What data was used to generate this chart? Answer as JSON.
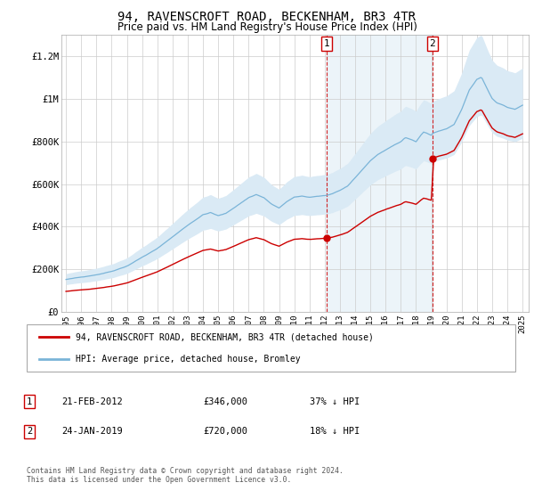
{
  "title": "94, RAVENSCROFT ROAD, BECKENHAM, BR3 4TR",
  "subtitle": "Price paid vs. HM Land Registry's House Price Index (HPI)",
  "title_fontsize": 10,
  "subtitle_fontsize": 8.5,
  "background_color": "#ffffff",
  "grid_color": "#cccccc",
  "hpi_color": "#7ab4d8",
  "hpi_fill_color": "#daeaf5",
  "price_color": "#cc0000",
  "ylim": [
    0,
    1300000
  ],
  "yticks": [
    0,
    200000,
    400000,
    600000,
    800000,
    1000000,
    1200000
  ],
  "ytick_labels": [
    "£0",
    "£200K",
    "£400K",
    "£600K",
    "£800K",
    "£1M",
    "£1.2M"
  ],
  "sale1_year": 2012.12,
  "sale1_price": 346000,
  "sale2_year": 2019.07,
  "sale2_price": 720000,
  "legend_red_label": "94, RAVENSCROFT ROAD, BECKENHAM, BR3 4TR (detached house)",
  "legend_blue_label": "HPI: Average price, detached house, Bromley",
  "annotation1_date": "21-FEB-2012",
  "annotation1_price": "£346,000",
  "annotation1_hpi": "37% ↓ HPI",
  "annotation2_date": "24-JAN-2019",
  "annotation2_price": "£720,000",
  "annotation2_hpi": "18% ↓ HPI",
  "footer": "Contains HM Land Registry data © Crown copyright and database right 2024.\nThis data is licensed under the Open Government Licence v3.0.",
  "xtick_years": [
    1995,
    1996,
    1997,
    1998,
    1999,
    2000,
    2001,
    2002,
    2003,
    2004,
    2005,
    2006,
    2007,
    2008,
    2009,
    2010,
    2011,
    2012,
    2013,
    2014,
    2015,
    2016,
    2017,
    2018,
    2019,
    2020,
    2021,
    2022,
    2023,
    2024,
    2025
  ]
}
